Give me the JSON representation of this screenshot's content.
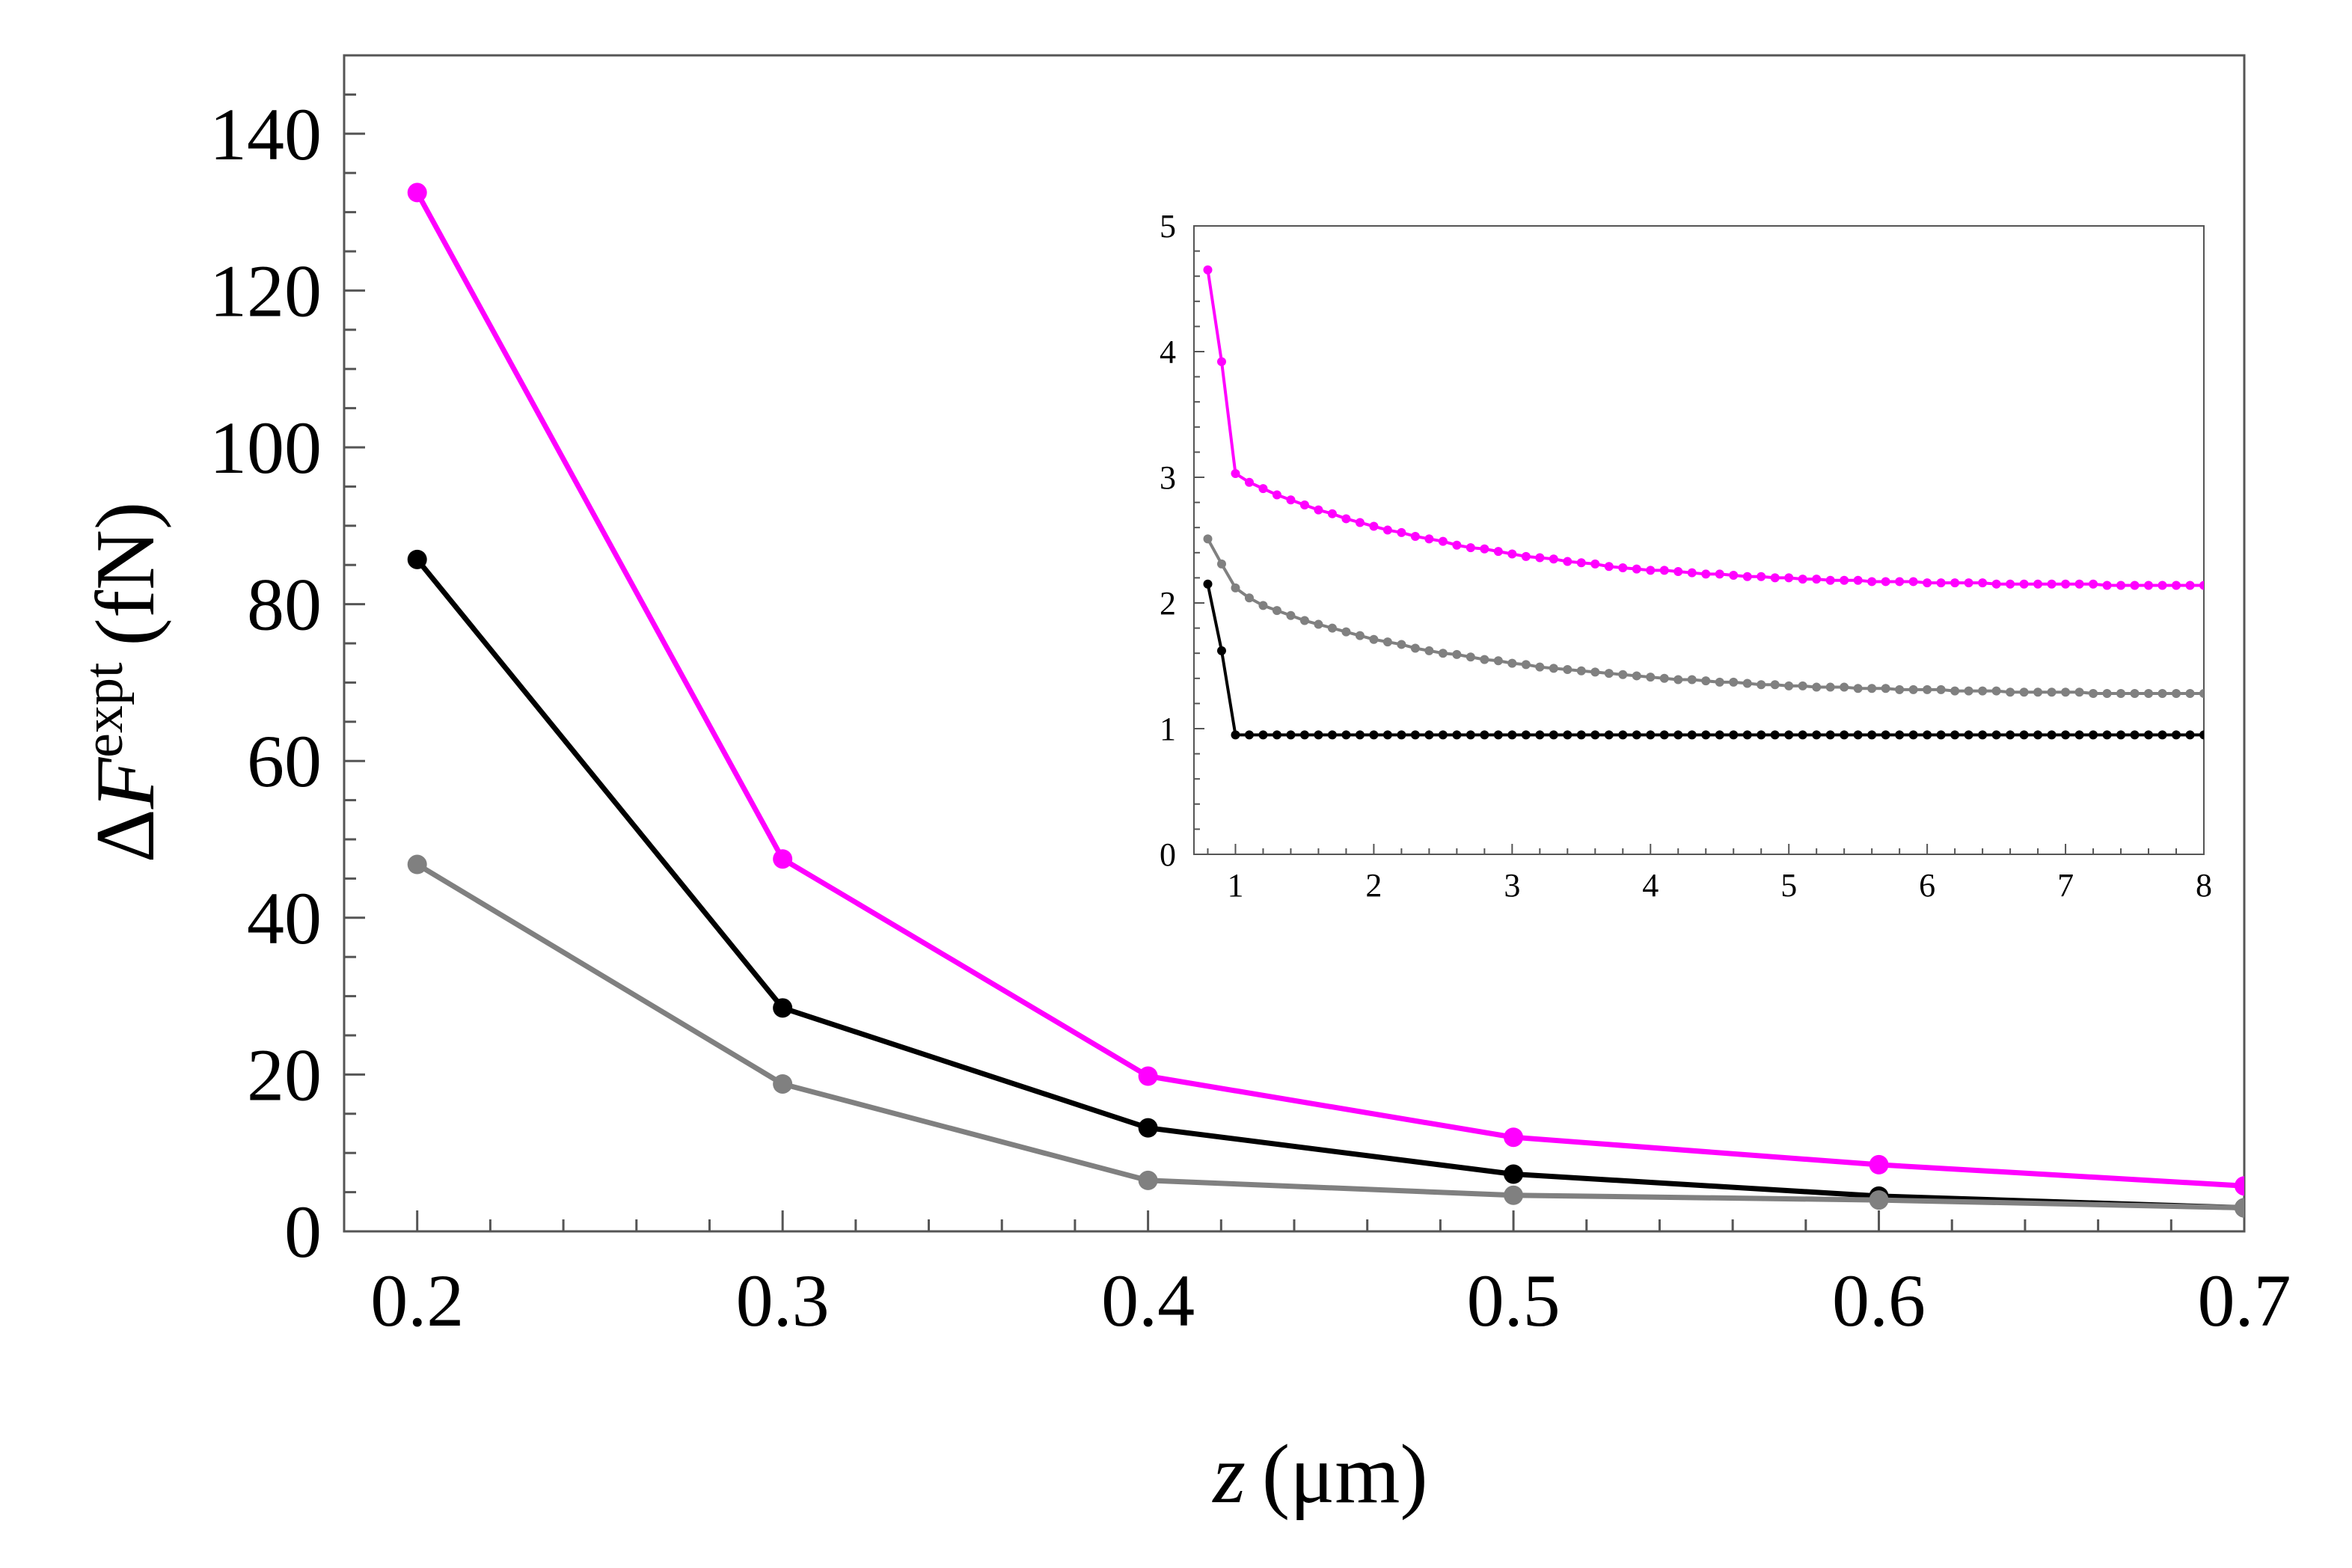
{
  "chart_data": [
    {
      "id": "main",
      "type": "line",
      "title": "",
      "xlabel": "z (μm)",
      "ylabel": "ΔF^expt (fN)",
      "xlabel_parts": {
        "var": "z",
        "unit": "(μm)"
      },
      "ylabel_parts": {
        "delta": "Δ",
        "var": "F",
        "sup": "expt",
        "unit": "(fN)"
      },
      "xlim": [
        0.18,
        0.7
      ],
      "ylim": [
        0,
        150
      ],
      "xticks": [
        0.2,
        0.3,
        0.4,
        0.5,
        0.6,
        0.7
      ],
      "xtick_labels": [
        "0.2",
        "0.3",
        "0.4",
        "0.5",
        "0.6",
        "0.7"
      ],
      "yticks": [
        0,
        20,
        40,
        60,
        80,
        100,
        120,
        140
      ],
      "ytick_labels": [
        "0",
        "20",
        "40",
        "60",
        "80",
        "100",
        "120",
        "140"
      ],
      "grid": false,
      "x": [
        0.2,
        0.3,
        0.4,
        0.5,
        0.6,
        0.7
      ],
      "series": [
        {
          "name": "magenta",
          "color": "#ff00ff",
          "values": [
            132.5,
            47.5,
            19.8,
            12.0,
            8.5,
            5.8
          ]
        },
        {
          "name": "black",
          "color": "#000000",
          "values": [
            85.7,
            28.5,
            13.2,
            7.3,
            4.5,
            3.0
          ]
        },
        {
          "name": "gray",
          "color": "#808080",
          "values": [
            46.8,
            18.8,
            6.5,
            4.6,
            4.0,
            3.0
          ]
        }
      ]
    },
    {
      "id": "inset",
      "type": "line",
      "title": "",
      "xlabel": "",
      "ylabel": "",
      "xlim": [
        0.7,
        8
      ],
      "ylim": [
        0,
        5
      ],
      "xticks": [
        1,
        2,
        3,
        4,
        5,
        6,
        7,
        8
      ],
      "xtick_labels": [
        "1",
        "2",
        "3",
        "4",
        "5",
        "6",
        "7",
        "8"
      ],
      "yticks": [
        0,
        1,
        2,
        3,
        4,
        5
      ],
      "ytick_labels": [
        "0",
        "1",
        "2",
        "3",
        "4",
        "5"
      ],
      "grid": false,
      "x": [
        0.8,
        0.9,
        1.0,
        1.1,
        1.2,
        1.3,
        1.4,
        1.5,
        1.6,
        1.7,
        1.8,
        1.9,
        2.0,
        2.1,
        2.2,
        2.3,
        2.4,
        2.5,
        2.6,
        2.7,
        2.8,
        2.9,
        3.0,
        3.1,
        3.2,
        3.3,
        3.4,
        3.5,
        3.6,
        3.7,
        3.8,
        3.9,
        4.0,
        4.1,
        4.2,
        4.3,
        4.4,
        4.5,
        4.6,
        4.7,
        4.8,
        4.9,
        5.0,
        5.1,
        5.2,
        5.3,
        5.4,
        5.5,
        5.6,
        5.7,
        5.8,
        5.9,
        6.0,
        6.1,
        6.2,
        6.3,
        6.4,
        6.5,
        6.6,
        6.7,
        6.8,
        6.9,
        7.0,
        7.1,
        7.2,
        7.3,
        7.4,
        7.5,
        7.6,
        7.7,
        7.8,
        7.9,
        8.0
      ],
      "series": [
        {
          "name": "magenta",
          "color": "#ff00ff",
          "values": [
            4.65,
            3.92,
            3.03,
            2.96,
            2.91,
            2.86,
            2.82,
            2.78,
            2.74,
            2.71,
            2.67,
            2.64,
            2.61,
            2.58,
            2.56,
            2.53,
            2.51,
            2.49,
            2.46,
            2.44,
            2.43,
            2.41,
            2.39,
            2.37,
            2.36,
            2.35,
            2.33,
            2.32,
            2.31,
            2.29,
            2.28,
            2.27,
            2.26,
            2.26,
            2.25,
            2.24,
            2.23,
            2.23,
            2.22,
            2.21,
            2.21,
            2.2,
            2.2,
            2.19,
            2.19,
            2.18,
            2.18,
            2.18,
            2.17,
            2.17,
            2.17,
            2.17,
            2.16,
            2.16,
            2.16,
            2.16,
            2.16,
            2.15,
            2.15,
            2.15,
            2.15,
            2.15,
            2.15,
            2.15,
            2.15,
            2.14,
            2.14,
            2.14,
            2.14,
            2.14,
            2.14,
            2.14,
            2.14
          ]
        },
        {
          "name": "gray",
          "color": "#808080",
          "values": [
            2.51,
            2.31,
            2.12,
            2.04,
            1.98,
            1.94,
            1.9,
            1.86,
            1.83,
            1.8,
            1.77,
            1.74,
            1.71,
            1.69,
            1.67,
            1.64,
            1.62,
            1.6,
            1.59,
            1.57,
            1.55,
            1.54,
            1.52,
            1.51,
            1.49,
            1.48,
            1.47,
            1.46,
            1.45,
            1.44,
            1.43,
            1.42,
            1.41,
            1.4,
            1.39,
            1.39,
            1.38,
            1.37,
            1.37,
            1.36,
            1.35,
            1.35,
            1.34,
            1.34,
            1.33,
            1.33,
            1.33,
            1.32,
            1.32,
            1.32,
            1.31,
            1.31,
            1.31,
            1.31,
            1.3,
            1.3,
            1.3,
            1.3,
            1.29,
            1.29,
            1.29,
            1.29,
            1.29,
            1.29,
            1.28,
            1.28,
            1.28,
            1.28,
            1.28,
            1.28,
            1.28,
            1.28,
            1.28
          ]
        },
        {
          "name": "black",
          "color": "#000000",
          "values": [
            2.15,
            1.62,
            0.95,
            0.95,
            0.95,
            0.95,
            0.95,
            0.95,
            0.95,
            0.95,
            0.95,
            0.95,
            0.95,
            0.95,
            0.95,
            0.95,
            0.95,
            0.95,
            0.95,
            0.95,
            0.95,
            0.95,
            0.95,
            0.95,
            0.95,
            0.95,
            0.95,
            0.95,
            0.95,
            0.95,
            0.95,
            0.95,
            0.95,
            0.95,
            0.95,
            0.95,
            0.95,
            0.95,
            0.95,
            0.95,
            0.95,
            0.95,
            0.95,
            0.95,
            0.95,
            0.95,
            0.95,
            0.95,
            0.95,
            0.95,
            0.95,
            0.95,
            0.95,
            0.95,
            0.95,
            0.95,
            0.95,
            0.95,
            0.95,
            0.95,
            0.95,
            0.95,
            0.95,
            0.95,
            0.95,
            0.95,
            0.95,
            0.95,
            0.95,
            0.95,
            0.95,
            0.95,
            0.95
          ]
        }
      ]
    }
  ]
}
